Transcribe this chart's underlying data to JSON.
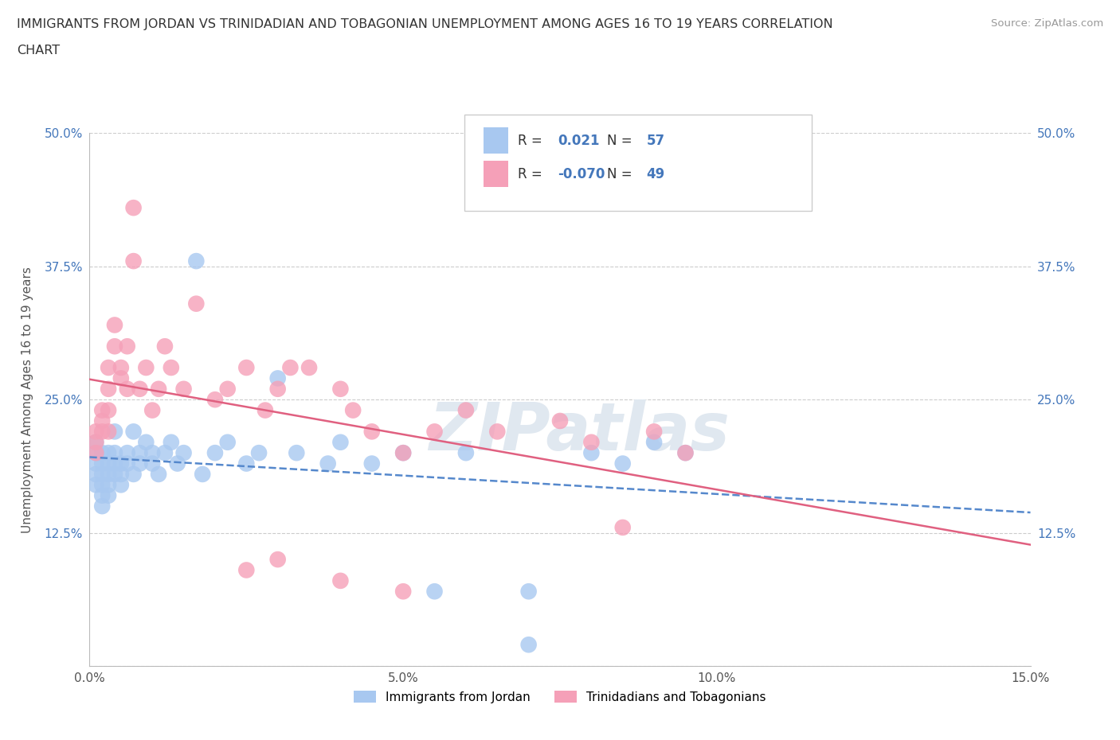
{
  "title_line1": "IMMIGRANTS FROM JORDAN VS TRINIDADIAN AND TOBAGONIAN UNEMPLOYMENT AMONG AGES 16 TO 19 YEARS CORRELATION",
  "title_line2": "CHART",
  "source": "Source: ZipAtlas.com",
  "ylabel": "Unemployment Among Ages 16 to 19 years",
  "xlim": [
    0.0,
    0.15
  ],
  "ylim": [
    0.0,
    0.5
  ],
  "xticks": [
    0.0,
    0.05,
    0.1,
    0.15
  ],
  "xtick_labels": [
    "0.0%",
    "5.0%",
    "10.0%",
    "15.0%"
  ],
  "yticks": [
    0.0,
    0.125,
    0.25,
    0.375,
    0.5
  ],
  "ytick_labels": [
    "",
    "12.5%",
    "25.0%",
    "37.5%",
    "50.0%"
  ],
  "jordan_R": 0.021,
  "jordan_N": 57,
  "tnt_R": -0.07,
  "tnt_N": 49,
  "jordan_color": "#a8c8f0",
  "jordan_line_color": "#5588cc",
  "tnt_color": "#f5a0b8",
  "tnt_line_color": "#e06080",
  "background_color": "#ffffff",
  "grid_color": "#cccccc",
  "title_color": "#333333",
  "legend_color": "#4477bb",
  "watermark_color": "#e0e8f0",
  "jordan_x": [
    0.001,
    0.001,
    0.001,
    0.001,
    0.001,
    0.002,
    0.002,
    0.002,
    0.002,
    0.002,
    0.002,
    0.003,
    0.003,
    0.003,
    0.003,
    0.003,
    0.004,
    0.004,
    0.004,
    0.004,
    0.005,
    0.005,
    0.005,
    0.006,
    0.006,
    0.007,
    0.007,
    0.008,
    0.008,
    0.009,
    0.01,
    0.01,
    0.011,
    0.012,
    0.013,
    0.014,
    0.015,
    0.017,
    0.018,
    0.02,
    0.022,
    0.025,
    0.027,
    0.03,
    0.033,
    0.038,
    0.04,
    0.045,
    0.05,
    0.055,
    0.06,
    0.07,
    0.08,
    0.085,
    0.09,
    0.095,
    0.07
  ],
  "jordan_y": [
    0.19,
    0.18,
    0.2,
    0.17,
    0.21,
    0.19,
    0.18,
    0.2,
    0.17,
    0.16,
    0.15,
    0.2,
    0.19,
    0.18,
    0.17,
    0.16,
    0.2,
    0.19,
    0.18,
    0.22,
    0.19,
    0.18,
    0.17,
    0.2,
    0.19,
    0.22,
    0.18,
    0.2,
    0.19,
    0.21,
    0.19,
    0.2,
    0.18,
    0.2,
    0.21,
    0.19,
    0.2,
    0.38,
    0.18,
    0.2,
    0.21,
    0.19,
    0.2,
    0.27,
    0.2,
    0.19,
    0.21,
    0.19,
    0.2,
    0.07,
    0.2,
    0.07,
    0.2,
    0.19,
    0.21,
    0.2,
    0.02
  ],
  "tnt_x": [
    0.001,
    0.001,
    0.001,
    0.002,
    0.002,
    0.002,
    0.003,
    0.003,
    0.003,
    0.003,
    0.004,
    0.004,
    0.005,
    0.005,
    0.006,
    0.006,
    0.007,
    0.007,
    0.008,
    0.009,
    0.01,
    0.011,
    0.012,
    0.013,
    0.015,
    0.017,
    0.02,
    0.022,
    0.025,
    0.028,
    0.03,
    0.032,
    0.035,
    0.04,
    0.042,
    0.045,
    0.05,
    0.055,
    0.06,
    0.065,
    0.075,
    0.08,
    0.085,
    0.09,
    0.095,
    0.04,
    0.025,
    0.03,
    0.05
  ],
  "tnt_y": [
    0.21,
    0.22,
    0.2,
    0.24,
    0.22,
    0.23,
    0.28,
    0.26,
    0.24,
    0.22,
    0.32,
    0.3,
    0.28,
    0.27,
    0.3,
    0.26,
    0.43,
    0.38,
    0.26,
    0.28,
    0.24,
    0.26,
    0.3,
    0.28,
    0.26,
    0.34,
    0.25,
    0.26,
    0.28,
    0.24,
    0.26,
    0.28,
    0.28,
    0.26,
    0.24,
    0.22,
    0.2,
    0.22,
    0.24,
    0.22,
    0.23,
    0.21,
    0.13,
    0.22,
    0.2,
    0.08,
    0.09,
    0.1,
    0.07
  ]
}
